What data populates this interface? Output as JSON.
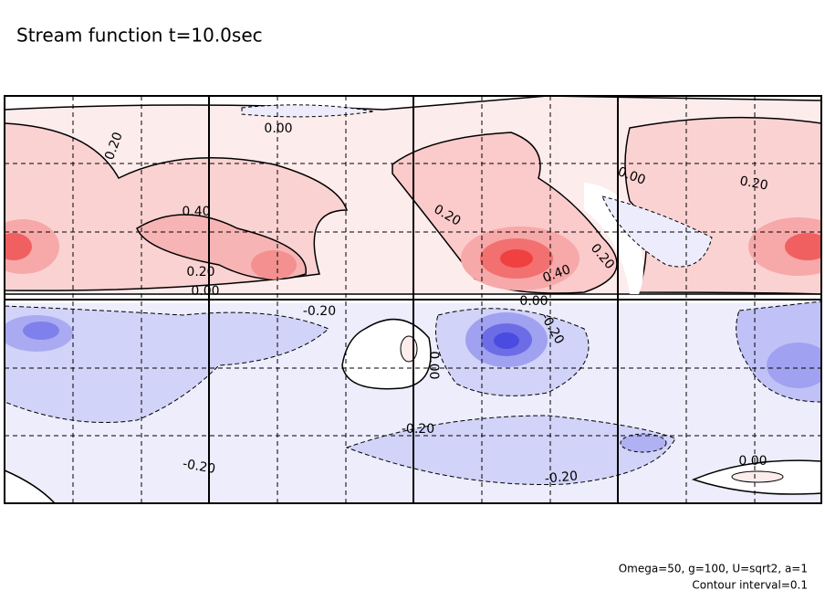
{
  "chart_data": {
    "type": "contour",
    "title": "Stream function t=10.0sec",
    "footnotes": [
      "Omega=50, g=100, U=sqrt2, a=1",
      "Contour interval=0.1"
    ],
    "contour_labels": [
      {
        "value": 0,
        "label": "0.00"
      },
      {
        "value": 0.2,
        "label": "0.20"
      },
      {
        "value": 0.4,
        "label": "0.40"
      },
      {
        "value": 0.2,
        "label": "0.20"
      },
      {
        "value": 0,
        "label": "0.00"
      },
      {
        "value": -0.2,
        "label": "-0.20"
      },
      {
        "value": 0.2,
        "label": "0.20"
      },
      {
        "value": 0,
        "label": "0.00"
      },
      {
        "value": 0.2,
        "label": "0.20"
      },
      {
        "value": 0.2,
        "label": "0.20"
      },
      {
        "value": 0.4,
        "label": "0.40"
      },
      {
        "value": 0,
        "label": "0.00"
      },
      {
        "value": -0.2,
        "label": "-0.20"
      },
      {
        "value": 0,
        "label": "0.00"
      },
      {
        "value": -0.2,
        "label": "-0.20"
      },
      {
        "value": -0.2,
        "label": "-0.20"
      },
      {
        "value": -0.2,
        "label": "-0.20"
      },
      {
        "value": 0,
        "label": "0.00"
      }
    ]
  }
}
